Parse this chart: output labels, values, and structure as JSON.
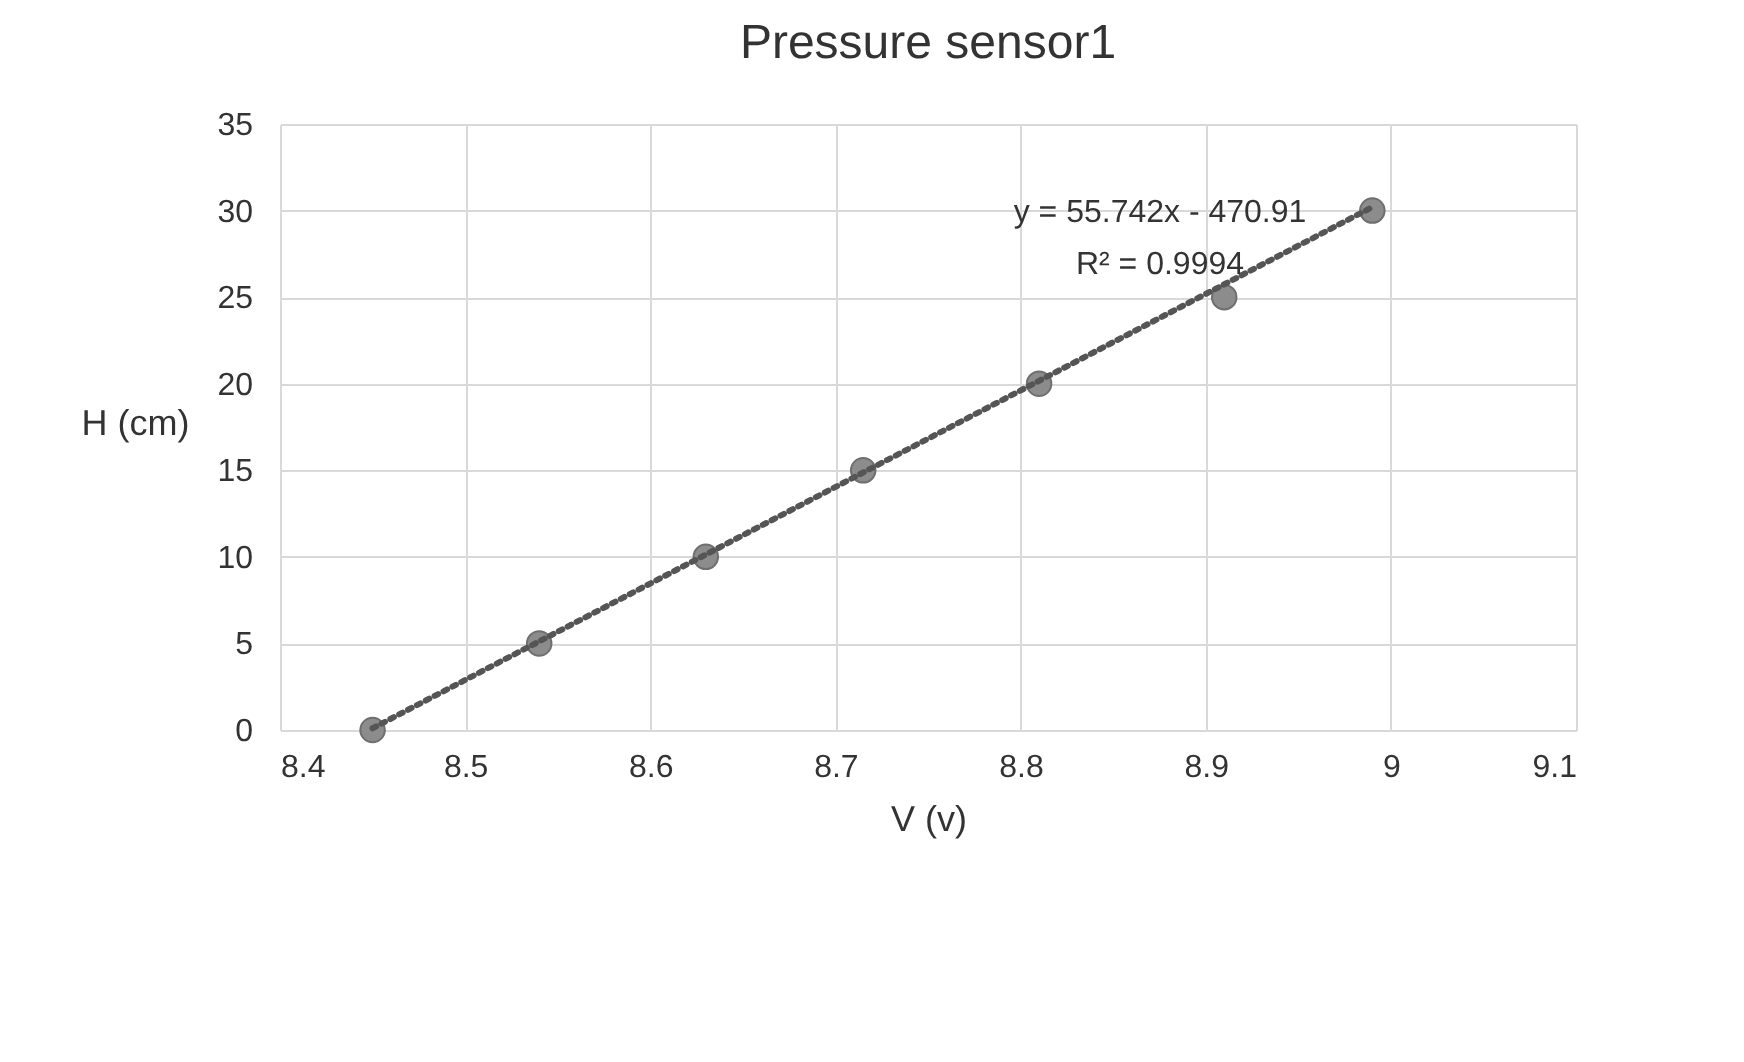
{
  "chart_data": {
    "type": "scatter",
    "title": "Pressure sensor1",
    "xlabel": "V (v)",
    "ylabel": "H (cm)",
    "x": [
      8.45,
      8.54,
      8.63,
      8.715,
      8.81,
      8.91,
      8.99
    ],
    "series": [
      {
        "color": "#8c8c8c",
        "values": [
          0,
          5,
          10,
          15,
          20,
          25,
          30
        ]
      },
      {
        "type": "line",
        "color": "#555555",
        "line_style": "dotted",
        "marker": "none",
        "x": [
          8.45,
          8.99
        ],
        "values": [
          0.1,
          30.2
        ]
      }
    ],
    "annotations": [
      "y = 55.742x - 470.91",
      "R² = 0.9994"
    ],
    "marker": "circle",
    "grid": true,
    "xlim": [
      8.4,
      9.1
    ],
    "xticks": [
      8.4,
      8.5,
      8.6,
      8.7,
      8.8,
      8.9,
      9,
      9.1
    ],
    "ylim": [
      0,
      35
    ],
    "yticks": [
      0,
      5,
      10,
      15,
      20,
      25,
      30,
      35
    ]
  }
}
